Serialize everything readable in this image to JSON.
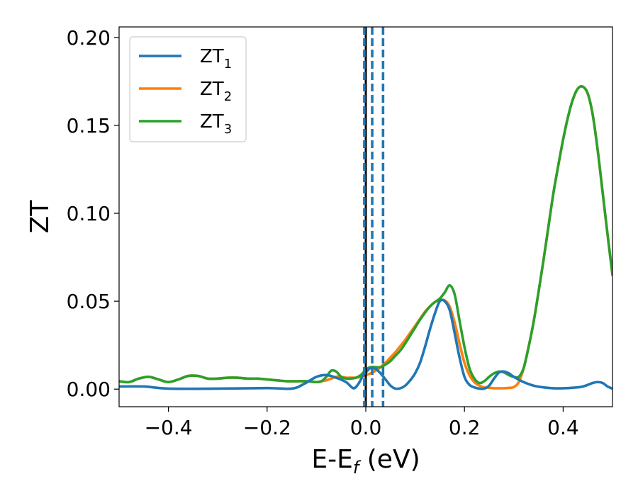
{
  "chart_data": {
    "type": "line",
    "xlabel": "E-E",
    "xlabel_subscript": "f",
    "xlabel_unit": " (eV)",
    "ylabel": "ZT",
    "xlim": [
      -0.5,
      0.5
    ],
    "ylim": [
      -0.01,
      0.206
    ],
    "x_ticks": [
      -0.4,
      -0.2,
      0.0,
      0.2,
      0.4
    ],
    "x_tick_labels": [
      "−0.4",
      "−0.2",
      "0.0",
      "0.2",
      "0.4"
    ],
    "y_ticks": [
      0.0,
      0.05,
      0.1,
      0.15,
      0.2
    ],
    "y_tick_labels": [
      "0.00",
      "0.05",
      "0.10",
      "0.15",
      "0.20"
    ],
    "grid": false,
    "legend_position": "top-left",
    "series": [
      {
        "name": "ZT",
        "subscript": "1",
        "color": "#1f77b4",
        "x": [
          -0.5,
          -0.45,
          -0.4,
          -0.3,
          -0.2,
          -0.15,
          -0.125,
          -0.1,
          -0.08,
          -0.06,
          -0.04,
          -0.025,
          -0.015,
          -0.005,
          0.0,
          0.005,
          0.01,
          0.02,
          0.03,
          0.04,
          0.05,
          0.06,
          0.07,
          0.08,
          0.09,
          0.1,
          0.11,
          0.12,
          0.13,
          0.14,
          0.15,
          0.16,
          0.17,
          0.18,
          0.19,
          0.2,
          0.21,
          0.22,
          0.23,
          0.24,
          0.25,
          0.26,
          0.27,
          0.28,
          0.29,
          0.3,
          0.32,
          0.34,
          0.36,
          0.38,
          0.4,
          0.42,
          0.44,
          0.46,
          0.47,
          0.48,
          0.49,
          0.5
        ],
        "y": [
          0.0015,
          0.0015,
          0.0003,
          0.0003,
          0.0006,
          0.0003,
          0.003,
          0.007,
          0.008,
          0.0065,
          0.004,
          0.0005,
          0.003,
          0.008,
          0.0095,
          0.011,
          0.012,
          0.0115,
          0.009,
          0.0055,
          0.002,
          0.0003,
          0.0005,
          0.002,
          0.005,
          0.009,
          0.015,
          0.024,
          0.034,
          0.043,
          0.05,
          0.05,
          0.045,
          0.032,
          0.018,
          0.007,
          0.0025,
          0.001,
          0.0003,
          0.0003,
          0.002,
          0.006,
          0.0095,
          0.01,
          0.009,
          0.007,
          0.004,
          0.002,
          0.001,
          0.0005,
          0.0005,
          0.0008,
          0.0015,
          0.0035,
          0.004,
          0.0035,
          0.0015,
          0.0003
        ]
      },
      {
        "name": "ZT",
        "subscript": "2",
        "color": "#ff7f0e",
        "x": [
          -0.5,
          -0.48,
          -0.46,
          -0.44,
          -0.42,
          -0.4,
          -0.38,
          -0.36,
          -0.34,
          -0.32,
          -0.3,
          -0.28,
          -0.26,
          -0.24,
          -0.22,
          -0.2,
          -0.18,
          -0.16,
          -0.14,
          -0.12,
          -0.1,
          -0.09,
          -0.08,
          -0.07,
          -0.06,
          -0.05,
          -0.04,
          -0.03,
          -0.02,
          -0.01,
          0.0,
          0.01,
          0.02,
          0.03,
          0.04,
          0.05,
          0.06,
          0.07,
          0.08,
          0.09,
          0.1,
          0.11,
          0.12,
          0.13,
          0.14,
          0.15,
          0.16,
          0.17,
          0.18,
          0.19,
          0.2,
          0.21,
          0.22,
          0.23,
          0.24,
          0.25,
          0.26,
          0.27,
          0.28,
          0.29,
          0.3,
          0.31,
          0.32,
          0.33,
          0.34,
          0.35,
          0.36,
          0.37,
          0.38,
          0.39,
          0.4,
          0.41,
          0.42,
          0.43,
          0.44,
          0.45,
          0.46,
          0.47,
          0.48,
          0.49,
          0.5
        ],
        "y": [
          0.0045,
          0.004,
          0.006,
          0.007,
          0.0055,
          0.004,
          0.0055,
          0.0075,
          0.0075,
          0.006,
          0.006,
          0.0065,
          0.0065,
          0.006,
          0.006,
          0.0055,
          0.005,
          0.0045,
          0.0045,
          0.0045,
          0.004,
          0.0045,
          0.005,
          0.006,
          0.007,
          0.007,
          0.0065,
          0.0065,
          0.0065,
          0.007,
          0.008,
          0.009,
          0.0105,
          0.0125,
          0.015,
          0.018,
          0.021,
          0.0245,
          0.028,
          0.032,
          0.036,
          0.04,
          0.044,
          0.047,
          0.0495,
          0.0505,
          0.0505,
          0.047,
          0.038,
          0.026,
          0.015,
          0.008,
          0.004,
          0.002,
          0.001,
          0.0008,
          0.0005,
          0.0005,
          0.0005,
          0.0007,
          0.0012,
          0.004,
          0.012,
          0.024,
          0.038,
          0.055,
          0.073,
          0.092,
          0.111,
          0.127,
          0.142,
          0.155,
          0.165,
          0.171,
          0.172,
          0.168,
          0.156,
          0.136,
          0.112,
          0.088,
          0.065
        ]
      },
      {
        "name": "ZT",
        "subscript": "3",
        "color": "#2ca02c",
        "x": [
          -0.5,
          -0.48,
          -0.46,
          -0.44,
          -0.42,
          -0.4,
          -0.38,
          -0.36,
          -0.34,
          -0.32,
          -0.3,
          -0.28,
          -0.26,
          -0.24,
          -0.22,
          -0.2,
          -0.18,
          -0.16,
          -0.14,
          -0.12,
          -0.1,
          -0.09,
          -0.08,
          -0.07,
          -0.06,
          -0.05,
          -0.04,
          -0.03,
          -0.02,
          -0.01,
          0.0,
          0.01,
          0.02,
          0.03,
          0.04,
          0.05,
          0.06,
          0.07,
          0.08,
          0.09,
          0.1,
          0.11,
          0.12,
          0.13,
          0.14,
          0.15,
          0.16,
          0.17,
          0.18,
          0.19,
          0.2,
          0.21,
          0.22,
          0.23,
          0.24,
          0.25,
          0.26,
          0.27,
          0.28,
          0.29,
          0.3,
          0.31,
          0.32,
          0.33,
          0.34,
          0.35,
          0.36,
          0.37,
          0.38,
          0.39,
          0.4,
          0.41,
          0.42,
          0.43,
          0.44,
          0.45,
          0.46,
          0.47,
          0.48,
          0.49,
          0.5
        ],
        "y": [
          0.0045,
          0.004,
          0.006,
          0.007,
          0.0055,
          0.004,
          0.0055,
          0.0075,
          0.0075,
          0.006,
          0.006,
          0.0065,
          0.0065,
          0.006,
          0.006,
          0.0055,
          0.005,
          0.0045,
          0.0045,
          0.0045,
          0.004,
          0.0045,
          0.007,
          0.0105,
          0.01,
          0.007,
          0.006,
          0.006,
          0.0065,
          0.008,
          0.011,
          0.0125,
          0.0125,
          0.0125,
          0.014,
          0.016,
          0.019,
          0.022,
          0.026,
          0.0305,
          0.035,
          0.0395,
          0.0435,
          0.047,
          0.0495,
          0.0515,
          0.055,
          0.059,
          0.054,
          0.039,
          0.024,
          0.012,
          0.006,
          0.0035,
          0.0045,
          0.007,
          0.009,
          0.01,
          0.0095,
          0.008,
          0.007,
          0.007,
          0.012,
          0.024,
          0.038,
          0.055,
          0.073,
          0.092,
          0.111,
          0.127,
          0.142,
          0.155,
          0.165,
          0.171,
          0.172,
          0.168,
          0.156,
          0.136,
          0.112,
          0.088,
          0.065
        ]
      }
    ],
    "vertical_lines": [
      {
        "x": 0.0,
        "style": "solid",
        "color": "#000000"
      },
      {
        "x": -0.003,
        "style": "dashed",
        "color": "#1f77b4"
      },
      {
        "x": 0.013,
        "style": "dashed",
        "color": "#1f77b4"
      },
      {
        "x": 0.035,
        "style": "dashed",
        "color": "#1f77b4"
      }
    ]
  }
}
